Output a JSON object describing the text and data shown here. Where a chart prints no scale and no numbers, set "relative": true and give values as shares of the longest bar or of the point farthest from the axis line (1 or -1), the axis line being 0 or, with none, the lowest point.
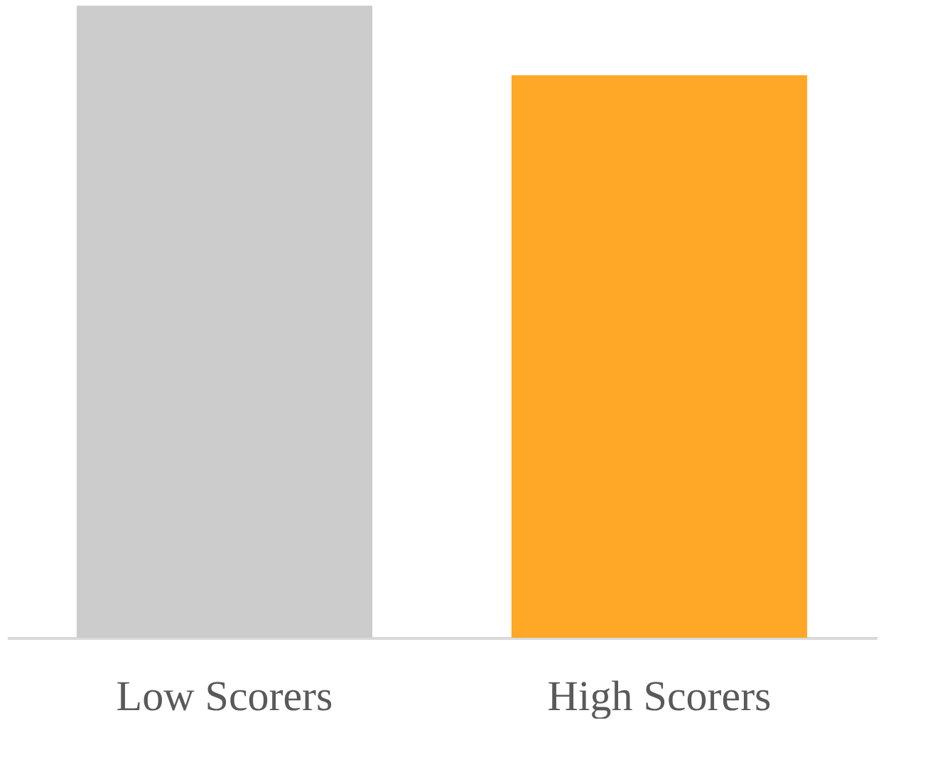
{
  "chart_data": {
    "type": "bar",
    "relative": true,
    "categories": [
      "Low Scorers",
      "High Scorers"
    ],
    "values": [
      1,
      0.89
    ],
    "colors": [
      "#cccccc",
      "#ffa726"
    ]
  }
}
